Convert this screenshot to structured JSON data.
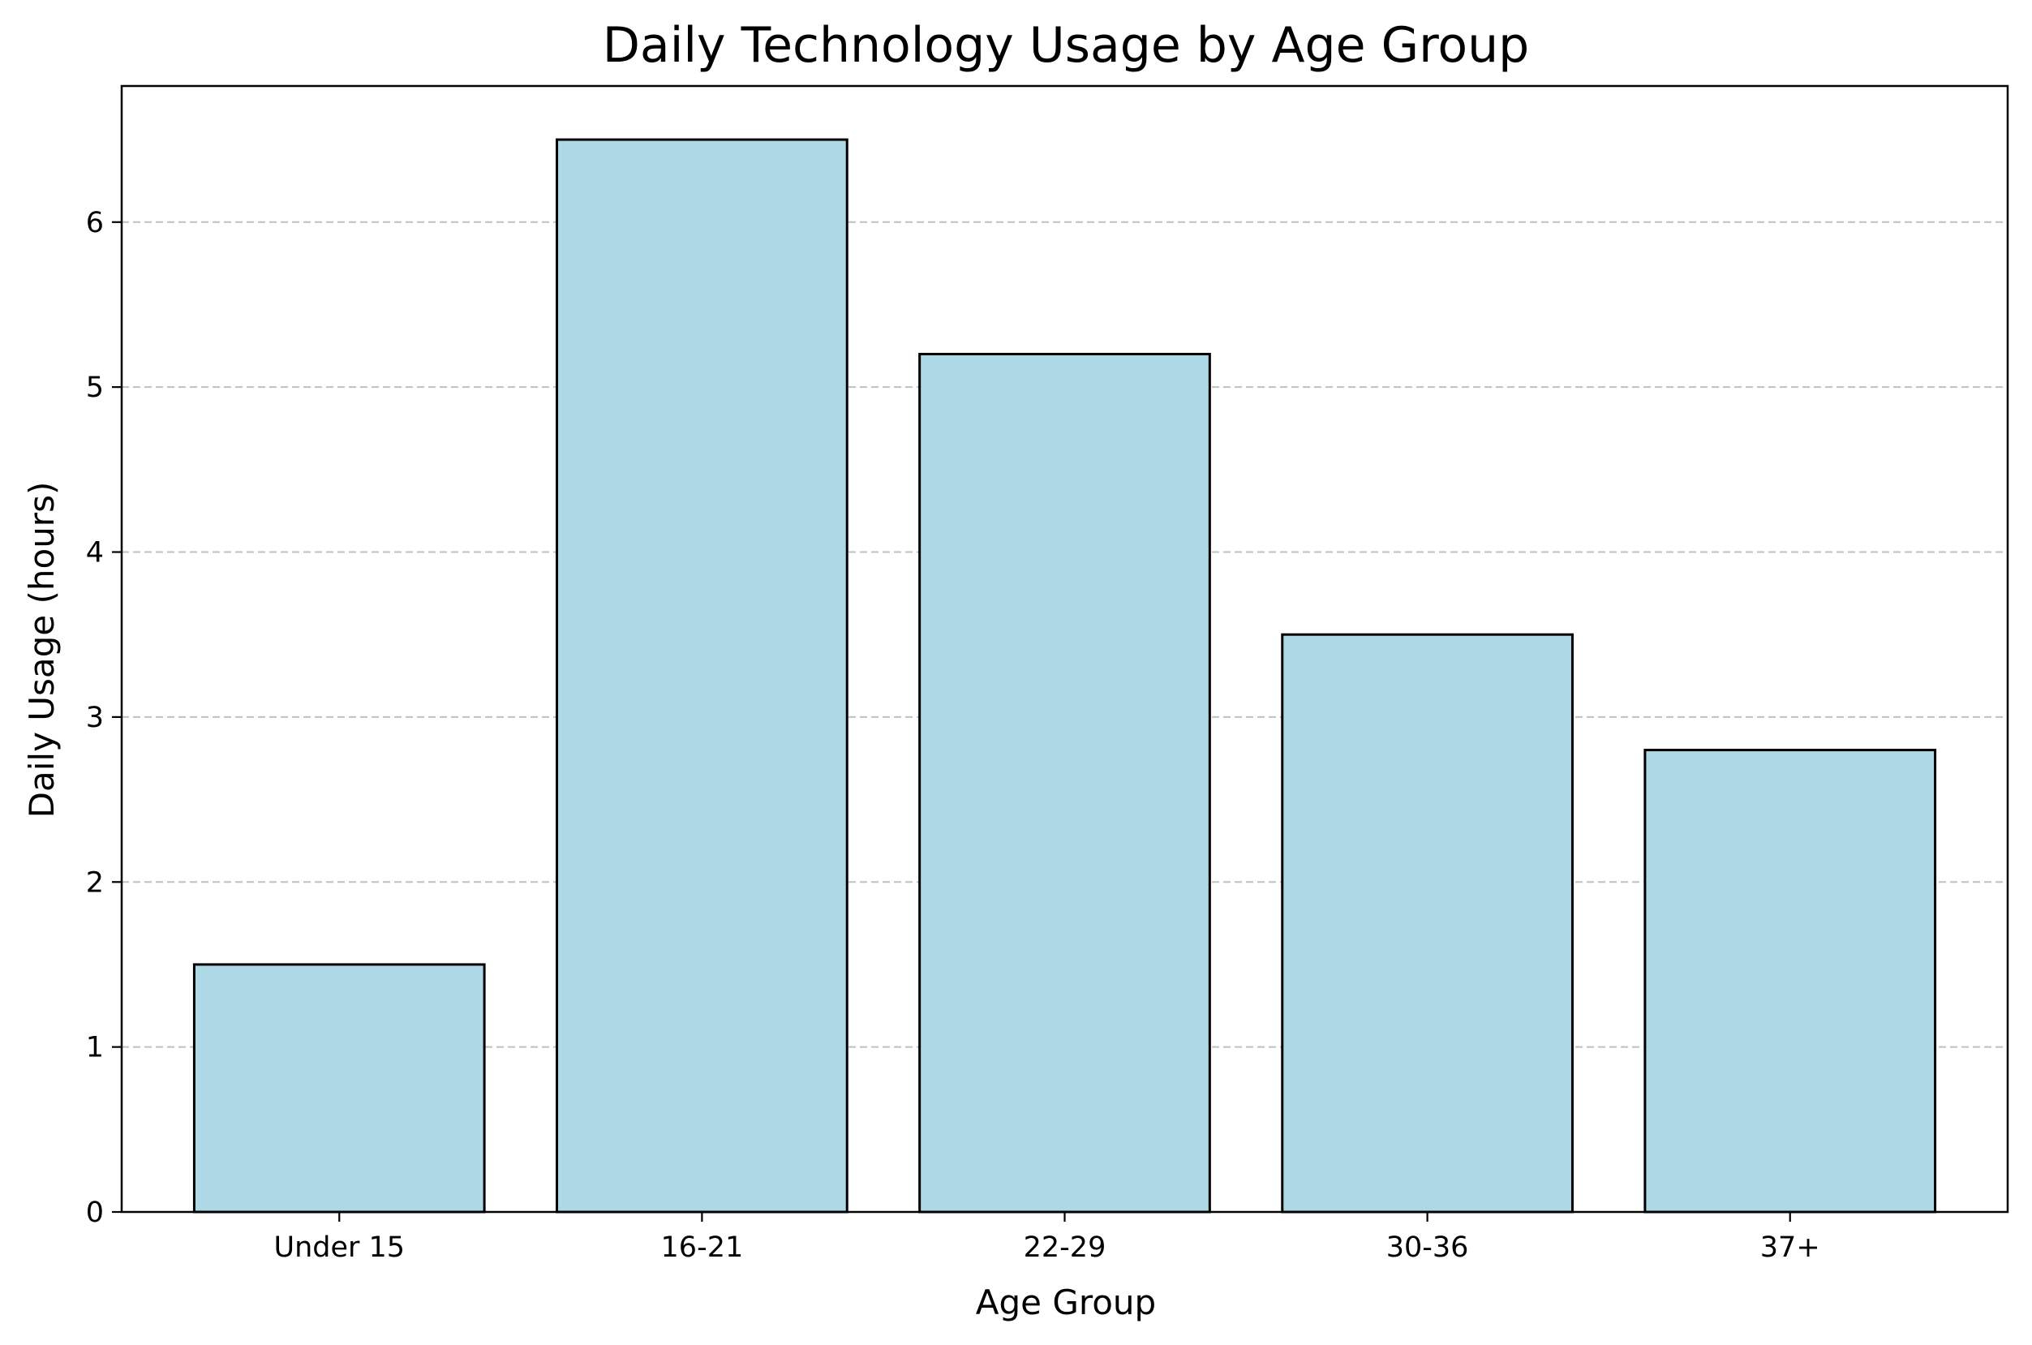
{
  "chart_data": {
    "type": "bar",
    "title": "Daily Technology Usage by Age Group",
    "xlabel": "Age Group",
    "ylabel": "Daily Usage (hours)",
    "categories": [
      "Under 15",
      "16-21",
      "22-29",
      "30-36",
      "37+"
    ],
    "values": [
      1.5,
      6.5,
      5.2,
      3.5,
      2.8
    ],
    "ylim": [
      0,
      6.825
    ],
    "yticks": [
      "0",
      "1",
      "2",
      "3",
      "4",
      "5",
      "6"
    ],
    "grid": "y-dashed",
    "colors": {
      "bar_fill": "#add8e6",
      "bar_edge": "#000000",
      "grid": "#c0c0c0"
    }
  }
}
